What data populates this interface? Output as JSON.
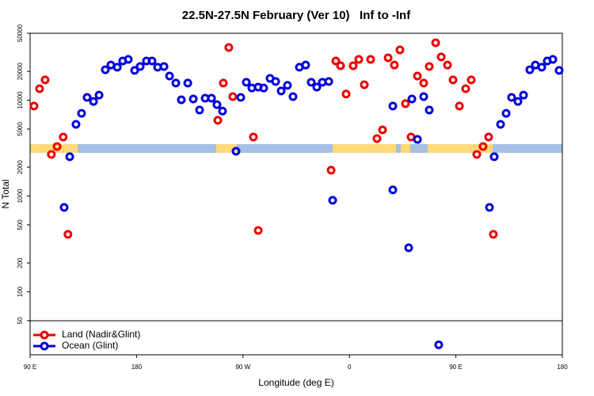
{
  "chart_data": {
    "type": "scatter",
    "title": "22.5N-27.5N February (Ver 10)   Inf to -Inf",
    "x_label": "Longitude (deg E)",
    "y_label": "N Total",
    "log_y": true,
    "xlim": [
      90,
      540
    ],
    "ylim": [
      22,
      50000
    ],
    "xticks": [
      {
        "value": 90,
        "label": "90 E"
      },
      180,
      {
        "value": 270,
        "label": "90 W"
      },
      {
        "value": 360,
        "label": "0"
      },
      {
        "value": 450,
        "label": "90 E"
      },
      {
        "value": 540,
        "label": "180"
      }
    ],
    "yticks": [
      50,
      100,
      200,
      500,
      1000,
      2000,
      5000,
      10000,
      20000,
      50000
    ],
    "legend": "bottom-left",
    "series": [
      {
        "name": "Land (Nadir&Glint)",
        "color": "#ee0000",
        "x": [
          93.3,
          98,
          102.7,
          108,
          112.8,
          118,
          122,
          248.7,
          253.4,
          258,
          261.4,
          278.8,
          282.9,
          344.5,
          348.5,
          352.5,
          357.2,
          363.2,
          367.9,
          372.6,
          377.9,
          383.3,
          388,
          392.7,
          398,
          402.7,
          407.4,
          412.1,
          417.5,
          422.8,
          427.5,
          432.9,
          437.6,
          442.9,
          447.6,
          453,
          458.3,
          463,
          467.7,
          473,
          477.7,
          481.7
        ],
        "values": [
          8700,
          13200,
          16300,
          2720,
          3290,
          4130,
          398,
          6170,
          15100,
          35500,
          10900,
          4130,
          437,
          1860,
          25700,
          22900,
          11600,
          22900,
          26700,
          14500,
          26700,
          3980,
          4900,
          27700,
          23300,
          33500,
          9200,
          4130,
          17900,
          15100,
          22500,
          39800,
          28300,
          23300,
          16300,
          8700,
          13200,
          16300,
          2720,
          3290,
          4130,
          398
        ]
      },
      {
        "name": "Ocean (Glint)",
        "color": "#0000dd",
        "x": [
          118.8,
          123.5,
          128.8,
          133.5,
          138.2,
          143.6,
          148.3,
          153.6,
          158.3,
          163.7,
          168.3,
          173,
          178.4,
          183.1,
          188.4,
          193.1,
          197.8,
          203.2,
          207.9,
          213.2,
          217.9,
          223.3,
          228,
          233.3,
          238,
          243.4,
          248,
          252.7,
          264.1,
          268.1,
          272.8,
          277.5,
          282.9,
          287.5,
          292.9,
          297.6,
          302.3,
          307.6,
          312.3,
          317.7,
          323,
          327.7,
          332.4,
          337.1,
          342.5,
          345.8,
          396.7,
          396.7,
          410.1,
          412.8,
          417.5,
          422.8,
          427.5,
          435.5,
          478.4,
          482.4,
          487.8,
          492.5,
          497.1,
          502.5,
          507.2,
          512.5,
          517.2,
          522.6,
          527.3,
          532,
          537.3
        ],
        "values": [
          760,
          2570,
          5600,
          7300,
          10700,
          9700,
          11300,
          20800,
          23300,
          22100,
          25700,
          26700,
          20500,
          22500,
          25700,
          25700,
          22100,
          22500,
          17900,
          15100,
          10100,
          15100,
          10300,
          7900,
          10500,
          10500,
          9000,
          7700,
          2930,
          10700,
          15400,
          13400,
          13700,
          13400,
          16900,
          15700,
          12500,
          14300,
          10900,
          22100,
          23300,
          15400,
          13700,
          15400,
          15700,
          902,
          1160,
          8700,
          288,
          10300,
          3900,
          10900,
          7900,
          28,
          760,
          2570,
          5600,
          7300,
          10700,
          9700,
          11300,
          20800,
          23300,
          22100,
          25700,
          26700,
          20500
        ]
      }
    ]
  }
}
